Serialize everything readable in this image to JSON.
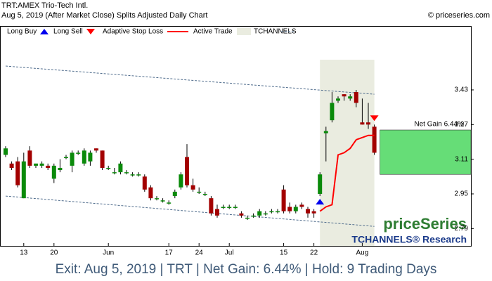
{
  "chart_data": {
    "type": "candlestick",
    "title": "TRT:AMEX Trio-Tech Intl.",
    "subtitle": "Aug 5, 2019 (After Market Close)  Splits Adjusted Daily Chart",
    "copyright": "© priceseries.com",
    "brand": "priceSeries",
    "brand_sub": "TCHANNELS® Research",
    "footer": "Exit: Aug 5, 2019 | TRT | Net Gain: 6.44% | Hold: 9 Trading Days",
    "net_gain_label": "Net Gain 6.44%",
    "legend": [
      "Long Buy",
      "Long Sell",
      "Adaptive Stop Loss",
      "Active Trade",
      "TCHANNELS"
    ],
    "categories": [
      null,
      null,
      null,
      "13",
      null,
      null,
      null,
      null,
      "20",
      null,
      null,
      null,
      null,
      null,
      null,
      null,
      null,
      "Jun",
      null,
      null,
      null,
      null,
      null,
      null,
      null,
      null,
      null,
      "17",
      null,
      null,
      null,
      null,
      "24",
      null,
      null,
      null,
      null,
      "Jul",
      null,
      null,
      null,
      null,
      null,
      null,
      null,
      null,
      "15",
      null,
      null,
      null,
      null,
      "22",
      null,
      null,
      null,
      null,
      null,
      null,
      null,
      "Aug",
      null,
      null
    ],
    "open": [
      3.13,
      3.09,
      3.1,
      2.93,
      3.15,
      3.08,
      3.08,
      3.08,
      3.02,
      3.06,
      3.12,
      3.08,
      3.14,
      3.09,
      3.1,
      3.16,
      3.15,
      3.07,
      3.05,
      3.05,
      3.05,
      3.04,
      3.04,
      3.03,
      2.98,
      2.93,
      2.92,
      2.91,
      2.94,
      2.98,
      3.12,
      2.99,
      2.96,
      2.95,
      2.93,
      2.88,
      2.89,
      2.89,
      2.89,
      2.86,
      2.84,
      2.85,
      2.85,
      2.86,
      2.87,
      2.87,
      2.97,
      2.89,
      2.87,
      2.9,
      2.88,
      2.87,
      2.95,
      3.23,
      3.29,
      3.38,
      3.41,
      3.39,
      3.42,
      3.28,
      3.28,
      3.26
    ],
    "high": [
      3.17,
      3.1,
      3.12,
      3.14,
      3.17,
      3.09,
      3.1,
      3.09,
      3.09,
      3.11,
      3.13,
      3.15,
      3.15,
      3.16,
      3.15,
      3.16,
      3.15,
      3.08,
      3.07,
      3.1,
      3.06,
      3.05,
      3.05,
      3.04,
      2.99,
      2.94,
      2.93,
      2.92,
      2.97,
      3.05,
      3.18,
      3.02,
      2.98,
      2.96,
      2.94,
      2.9,
      2.9,
      2.9,
      2.9,
      2.87,
      2.85,
      2.86,
      2.88,
      2.87,
      2.88,
      2.88,
      2.99,
      2.91,
      2.9,
      2.91,
      2.89,
      2.88,
      3.05,
      3.26,
      3.42,
      3.4,
      3.41,
      3.41,
      3.43,
      3.39,
      3.37,
      3.27
    ],
    "low": [
      3.12,
      3.06,
      2.98,
      2.93,
      3.07,
      3.07,
      3.07,
      3.06,
      3.0,
      3.05,
      3.11,
      3.05,
      3.13,
      3.08,
      3.08,
      3.14,
      3.06,
      3.06,
      3.04,
      3.04,
      3.04,
      3.03,
      3.03,
      2.96,
      2.92,
      2.92,
      2.91,
      2.9,
      2.93,
      2.97,
      2.98,
      2.96,
      2.95,
      2.94,
      2.85,
      2.84,
      2.88,
      2.88,
      2.88,
      2.84,
      2.83,
      2.84,
      2.84,
      2.85,
      2.86,
      2.86,
      2.86,
      2.86,
      2.86,
      2.88,
      2.84,
      2.84,
      2.94,
      3.1,
      3.28,
      3.37,
      3.38,
      3.38,
      3.35,
      3.27,
      3.25,
      3.13
    ],
    "close": [
      3.16,
      3.07,
      2.99,
      3.1,
      3.08,
      3.09,
      3.09,
      3.07,
      3.08,
      3.07,
      3.12,
      3.14,
      3.14,
      3.15,
      3.14,
      3.15,
      3.07,
      3.07,
      3.05,
      3.09,
      3.05,
      3.04,
      3.04,
      2.97,
      2.93,
      2.93,
      2.92,
      2.91,
      2.96,
      3.04,
      2.99,
      2.97,
      2.96,
      2.95,
      2.86,
      2.85,
      2.89,
      2.89,
      2.89,
      2.85,
      2.84,
      2.85,
      2.87,
      2.86,
      2.87,
      2.87,
      2.87,
      2.87,
      2.89,
      2.89,
      2.86,
      2.86,
      3.04,
      3.24,
      3.37,
      3.39,
      3.4,
      3.4,
      3.37,
      3.27,
      3.27,
      3.14
    ],
    "stop_loss": [
      null,
      null,
      null,
      null,
      null,
      null,
      null,
      null,
      null,
      null,
      null,
      null,
      null,
      null,
      null,
      null,
      null,
      null,
      null,
      null,
      null,
      null,
      null,
      null,
      null,
      null,
      null,
      null,
      null,
      null,
      null,
      null,
      null,
      null,
      null,
      null,
      null,
      null,
      null,
      null,
      null,
      null,
      null,
      null,
      null,
      null,
      null,
      null,
      null,
      null,
      null,
      null,
      2.87,
      2.89,
      2.9,
      3.13,
      3.14,
      3.16,
      3.2,
      3.21,
      3.22,
      3.22
    ],
    "channel_upper": [
      3.54,
      3.41
    ],
    "channel_lower": [
      2.94,
      2.8
    ],
    "net_gain_range": [
      3.04,
      3.245
    ],
    "ylim": [
      2.71,
      3.725
    ],
    "yticks": [
      2.79,
      2.95,
      3.11,
      3.27,
      3.43
    ],
    "up_color": "#0a8a0a",
    "down_color": "#a30000",
    "stop_color": "#ff0000",
    "buy_color": "#0000ee",
    "sell_color": "#ff0000",
    "trade_color": "#eaece0",
    "gain_color": "#66dd77",
    "channel_color": "#4f6c8c"
  }
}
